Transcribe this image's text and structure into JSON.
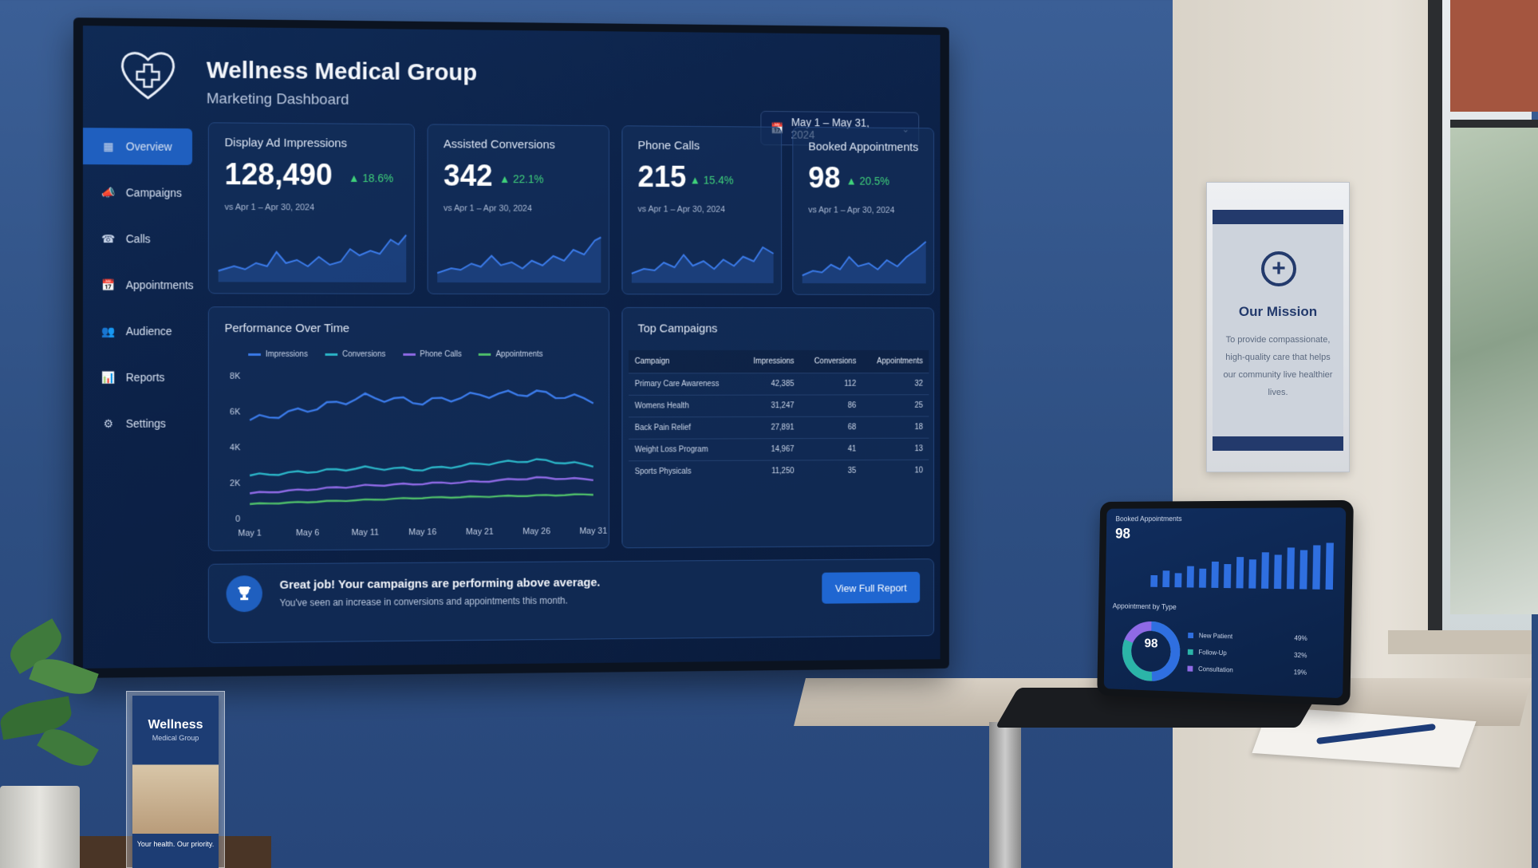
{
  "brand": {
    "title": "Wellness Medical Group",
    "subtitle": "Marketing Dashboard"
  },
  "date_range": {
    "label": "May 1 – May 31, 2024",
    "icon": "calendar-icon"
  },
  "sidebar": {
    "items": [
      {
        "label": "Overview",
        "icon": "grid-icon",
        "active": true
      },
      {
        "label": "Campaigns",
        "icon": "megaphone-icon"
      },
      {
        "label": "Calls",
        "icon": "phone-icon"
      },
      {
        "label": "Appointments",
        "icon": "calendar-icon"
      },
      {
        "label": "Audience",
        "icon": "users-icon"
      },
      {
        "label": "Reports",
        "icon": "bar-chart-icon"
      },
      {
        "label": "Settings",
        "icon": "gear-icon"
      }
    ]
  },
  "kpis": [
    {
      "label": "Display Ad Impressions",
      "value": "128,490",
      "delta": "18.6%",
      "compare": "vs Apr 1 – Apr 30, 2024"
    },
    {
      "label": "Assisted Conversions",
      "value": "342",
      "delta": "22.1%",
      "compare": "vs Apr 1 – Apr 30, 2024"
    },
    {
      "label": "Phone Calls",
      "value": "215",
      "delta": "15.4%",
      "compare": "vs Apr 1 – Apr 30, 2024"
    },
    {
      "label": "Booked Appointments",
      "value": "98",
      "delta": "20.5%",
      "compare": "vs Apr 1 – Apr 30, 2024"
    }
  ],
  "performance": {
    "title": "Performance Over Time",
    "chart_data": {
      "type": "line",
      "x": [
        "May 1",
        "May 6",
        "May 11",
        "May 16",
        "May 21",
        "May 26",
        "May 31"
      ],
      "ylim": [
        0,
        8000
      ],
      "yticks": [
        "0",
        "2K",
        "4K",
        "6K",
        "8K"
      ],
      "grid": false,
      "legend": "top",
      "series": [
        {
          "name": "Impressions",
          "color": "#3b7bea",
          "values": [
            5500,
            6100,
            6800,
            6500,
            6900,
            7000,
            6600
          ]
        },
        {
          "name": "Conversions",
          "color": "#2bb5c8",
          "values": [
            2400,
            2600,
            2800,
            2700,
            3000,
            3200,
            2900
          ]
        },
        {
          "name": "Phone Calls",
          "color": "#8f6ae6",
          "values": [
            1400,
            1600,
            1800,
            1900,
            2000,
            2200,
            2100
          ]
        },
        {
          "name": "Appointments",
          "color": "#4fbf6a",
          "values": [
            800,
            900,
            1000,
            1100,
            1150,
            1200,
            1250
          ]
        }
      ]
    }
  },
  "top_campaigns": {
    "title": "Top Campaigns",
    "headers": [
      "Campaign",
      "Impressions",
      "Conversions",
      "Appointments"
    ],
    "rows": [
      [
        "Primary Care Awareness",
        "42,385",
        "112",
        "32"
      ],
      [
        "Womens Health",
        "31,247",
        "86",
        "25"
      ],
      [
        "Back Pain Relief",
        "27,891",
        "68",
        "18"
      ],
      [
        "Weight Loss Program",
        "14,967",
        "41",
        "13"
      ],
      [
        "Sports Physicals",
        "11,250",
        "35",
        "10"
      ]
    ]
  },
  "banner": {
    "title": "Great job! Your campaigns are performing above average.",
    "subtitle": "You've seen an increase in conversions and appointments this month.",
    "button": "View Full Report"
  },
  "plaque": {
    "title": "Our Mission",
    "text": "To provide compassionate, high-quality care that helps our community live healthier lives."
  },
  "tablet": {
    "title": "Booked Appointments",
    "value": "98",
    "bars": [
      0.25,
      0.35,
      0.3,
      0.45,
      0.4,
      0.55,
      0.5,
      0.65,
      0.6,
      0.75,
      0.7,
      0.85,
      0.8,
      0.9,
      0.95
    ],
    "sub_title": "Appointment by Type",
    "donut_value": "98",
    "types": [
      {
        "label": "New Patient",
        "pct": "49%",
        "color": "#2f6fe0"
      },
      {
        "label": "Follow-Up",
        "pct": "32%",
        "color": "#2bb5a8"
      },
      {
        "label": "Consultation",
        "pct": "19%",
        "color": "#8f6ae6"
      }
    ]
  },
  "brochure": {
    "title": "Wellness",
    "subtitle": "Medical Group",
    "tagline": "Your health. Our priority."
  },
  "colors": {
    "accent": "#1f5fbf",
    "positive": "#3fd17a",
    "background": "#0c2147"
  }
}
